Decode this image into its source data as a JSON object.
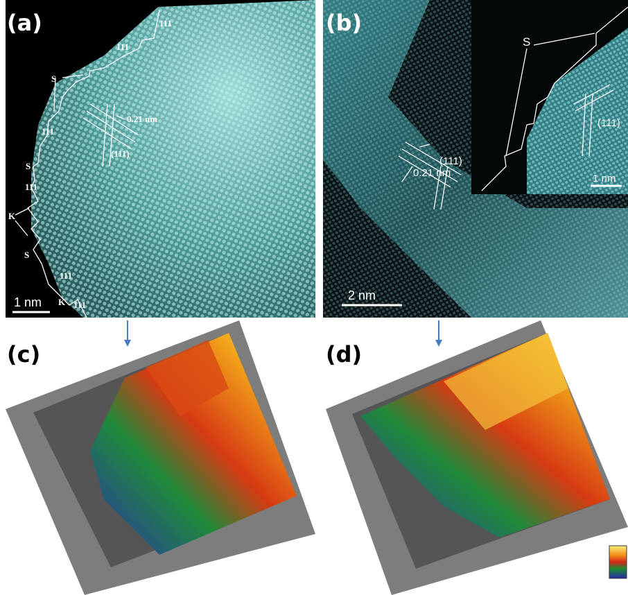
{
  "panels": [
    {
      "label": "(a)",
      "edge_labels": [
        "111",
        "111",
        "S",
        "111",
        "S",
        "111",
        "K",
        "S",
        "111",
        "K",
        "111"
      ],
      "spacing": "0.21 nm",
      "plane": "(111)",
      "scale_bar": "1 nm"
    },
    {
      "label": "(b)",
      "spacing": "0.21 nm",
      "plane": "(111)",
      "scale_bar": "2 nm",
      "inset": {
        "label": "S",
        "plane": "(111)",
        "scale_bar": "1 nm"
      }
    },
    {
      "label": "(c)"
    },
    {
      "label": "(d)"
    }
  ]
}
